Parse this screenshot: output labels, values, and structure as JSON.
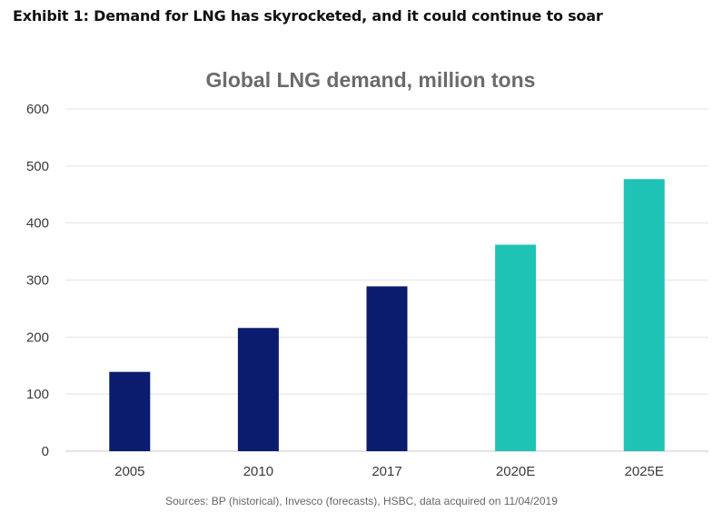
{
  "exhibit": {
    "title": "Exhibit 1: Demand for LNG has skyrocketed, and it could continue to soar"
  },
  "colors": {
    "historical": "#0b1b6e",
    "forecast": "#1ec3b5",
    "gridline": "#e3e3e3",
    "axis": "#c8c8c8"
  },
  "chart_data": {
    "type": "bar",
    "title": "Global LNG demand, million tons",
    "xlabel": "",
    "ylabel": "",
    "categories": [
      "2005",
      "2010",
      "2017",
      "2020E",
      "2025E"
    ],
    "values": [
      139,
      216,
      289,
      362,
      477
    ],
    "bar_kind": [
      "historical",
      "historical",
      "historical",
      "forecast",
      "forecast"
    ],
    "ylim": [
      0,
      600
    ],
    "yticks": [
      0,
      100,
      200,
      300,
      400,
      500,
      600
    ],
    "grid": true,
    "legend": "none"
  },
  "footer": {
    "source": "Sources: BP (historical), Invesco (forecasts), HSBC, data acquired on 11/04/2019"
  }
}
